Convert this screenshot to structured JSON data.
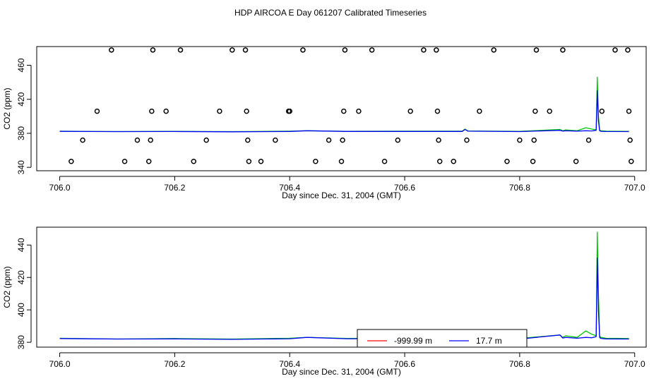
{
  "page_title": "HDP AIRCOA E  Day 061207  Calibrated Timeseries",
  "colors": {
    "series_red": "#ff0000",
    "series_green": "#00c800",
    "series_blue": "#0000ff",
    "axis": "#000000",
    "frame": "#000000"
  },
  "chart_data": [
    {
      "type": "line",
      "title": "",
      "xlabel": "Day since Dec. 31, 2004 (GMT)",
      "ylabel": "CO2 (ppm)",
      "xlim": [
        705.96,
        707.02
      ],
      "ylim": [
        336,
        482
      ],
      "x_ticks": [
        706.0,
        706.2,
        706.4,
        706.6,
        706.8,
        707.0
      ],
      "x_tick_labels": [
        "706.0",
        "706.2",
        "706.4",
        "706.6",
        "706.8",
        "707.0"
      ],
      "y_ticks": [
        340,
        380,
        420,
        460
      ],
      "y_tick_labels": [
        "340",
        "380",
        "420",
        "460"
      ],
      "grid": false,
      "legend": null,
      "series": [
        {
          "color": "green",
          "x": [
            706.0,
            706.1,
            706.2,
            706.3,
            706.4,
            706.43,
            706.5,
            706.6,
            706.7,
            706.705,
            706.71,
            706.8,
            706.87,
            706.875,
            706.88,
            706.9,
            706.915,
            706.925,
            706.933,
            706.935,
            706.937,
            706.939,
            706.941,
            706.95,
            706.99
          ],
          "values": [
            382.5,
            382.0,
            382.3,
            382.0,
            382.5,
            383.0,
            382.4,
            382.5,
            382.5,
            385.0,
            382.8,
            382.4,
            384.5,
            383.0,
            384.0,
            383.0,
            386.5,
            385.0,
            384.0,
            446.0,
            400.0,
            384.0,
            383.0,
            382.5,
            382.3
          ]
        },
        {
          "color": "blue",
          "x": [
            706.0,
            706.1,
            706.2,
            706.3,
            706.4,
            706.43,
            706.5,
            706.6,
            706.7,
            706.705,
            706.71,
            706.8,
            706.87,
            706.875,
            706.88,
            706.9,
            706.915,
            706.925,
            706.933,
            706.935,
            706.937,
            706.939,
            706.941,
            706.95,
            706.99
          ],
          "values": [
            382.3,
            382.0,
            382.1,
            381.8,
            382.2,
            383.0,
            382.2,
            382.2,
            382.2,
            384.5,
            382.5,
            382.0,
            383.5,
            382.6,
            383.0,
            382.5,
            383.0,
            382.8,
            383.5,
            430.0,
            395.0,
            383.0,
            382.4,
            382.1,
            382.0
          ]
        }
      ],
      "points": {
        "marker": "open-circle",
        "x": [
          706.02,
          706.04,
          706.065,
          706.09,
          706.113,
          706.135,
          706.155,
          706.158,
          706.16,
          706.162,
          706.185,
          706.21,
          706.233,
          706.255,
          706.278,
          706.3,
          706.323,
          706.325,
          706.327,
          706.329,
          706.35,
          706.375,
          706.398,
          706.4,
          706.423,
          706.445,
          706.468,
          706.49,
          706.492,
          706.494,
          706.496,
          706.52,
          706.543,
          706.565,
          706.588,
          706.61,
          706.633,
          706.655,
          706.657,
          706.659,
          706.661,
          706.685,
          706.708,
          706.73,
          706.755,
          706.778,
          706.8,
          706.823,
          706.825,
          706.827,
          706.829,
          706.852,
          706.875,
          706.898,
          706.92,
          706.943,
          706.966,
          706.988,
          706.99,
          706.992,
          706.994
        ],
        "values": [
          347,
          372,
          406,
          478,
          347,
          372,
          347,
          372,
          406,
          478,
          406,
          478,
          347,
          372,
          406,
          478,
          478,
          406,
          372,
          347,
          347,
          372,
          406,
          406,
          478,
          347,
          372,
          347,
          372,
          406,
          478,
          406,
          478,
          347,
          372,
          406,
          478,
          478,
          406,
          372,
          347,
          347,
          372,
          406,
          478,
          347,
          372,
          347,
          372,
          406,
          478,
          406,
          478,
          347,
          372,
          406,
          478,
          478,
          406,
          372,
          347
        ]
      }
    },
    {
      "type": "line",
      "title": "",
      "xlabel": "Day since Dec. 31, 2004 (GMT)",
      "ylabel": "CO2 (ppm)",
      "xlim": [
        705.96,
        707.02
      ],
      "ylim": [
        377,
        451
      ],
      "x_ticks": [
        706.0,
        706.2,
        706.4,
        706.6,
        706.8,
        707.0
      ],
      "x_tick_labels": [
        "706.0",
        "706.2",
        "706.4",
        "706.6",
        "706.8",
        "707.0"
      ],
      "y_ticks": [
        380,
        400,
        420,
        440
      ],
      "y_tick_labels": [
        "380",
        "400",
        "420",
        "440"
      ],
      "grid": false,
      "legend": {
        "placement": "bottom-center",
        "entries": [
          {
            "label": "-999.99 m",
            "color": "red"
          },
          {
            "label": "17.7 m",
            "color": "blue"
          }
        ]
      },
      "series": [
        {
          "name": "17.7 m",
          "color": "green",
          "x": [
            706.0,
            706.1,
            706.2,
            706.3,
            706.4,
            706.43,
            706.5,
            706.6,
            706.7,
            706.705,
            706.71,
            706.8,
            706.87,
            706.875,
            706.88,
            706.9,
            706.915,
            706.925,
            706.933,
            706.935,
            706.937,
            706.939,
            706.941,
            706.95,
            706.99
          ],
          "values": [
            382.5,
            382.0,
            382.3,
            382.0,
            382.5,
            383.0,
            382.4,
            382.5,
            382.5,
            385.0,
            382.8,
            382.4,
            384.5,
            383.0,
            384.0,
            383.0,
            387.0,
            385.0,
            384.0,
            448.0,
            410.0,
            384.0,
            383.0,
            382.5,
            382.3
          ]
        },
        {
          "name": "17.7 m",
          "color": "blue",
          "x": [
            706.0,
            706.1,
            706.2,
            706.3,
            706.4,
            706.43,
            706.5,
            706.6,
            706.7,
            706.705,
            706.71,
            706.8,
            706.87,
            706.875,
            706.88,
            706.9,
            706.915,
            706.925,
            706.933,
            706.935,
            706.937,
            706.939,
            706.941,
            706.95,
            706.99
          ],
          "values": [
            382.3,
            382.0,
            382.1,
            381.8,
            382.2,
            383.0,
            382.2,
            382.2,
            382.2,
            385.5,
            382.5,
            382.0,
            384.5,
            382.6,
            383.0,
            382.5,
            383.0,
            382.8,
            383.5,
            432.0,
            400.0,
            383.0,
            382.4,
            382.1,
            382.0
          ]
        }
      ]
    }
  ]
}
